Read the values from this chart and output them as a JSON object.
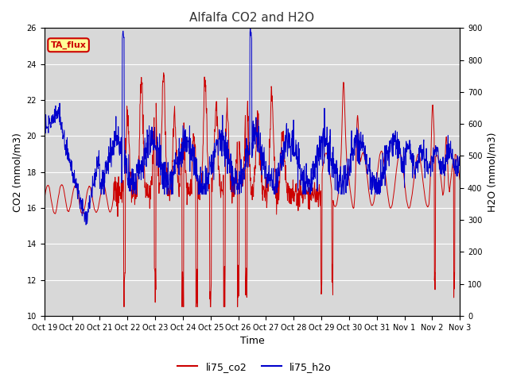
{
  "title": "Alfalfa CO2 and H2O",
  "xlabel": "Time",
  "ylabel_left": "CO2 (mmol/m3)",
  "ylabel_right": "H2O (mmol/m3)",
  "ylim_left": [
    10,
    26
  ],
  "ylim_right": [
    0,
    900
  ],
  "yticks_left": [
    10,
    12,
    14,
    16,
    18,
    20,
    22,
    24,
    26
  ],
  "yticks_right": [
    0,
    100,
    200,
    300,
    400,
    500,
    600,
    700,
    800,
    900
  ],
  "color_co2": "#cc0000",
  "color_h2o": "#0000cc",
  "legend_label_co2": "li75_co2",
  "legend_label_h2o": "li75_h2o",
  "annotation_text": "TA_flux",
  "annotation_color": "#cc0000",
  "annotation_bg": "#ffff99",
  "plot_bg": "#d8d8d8",
  "tick_labels": [
    "Oct 19",
    "Oct 20",
    "Oct 21",
    "Oct 22",
    "Oct 23",
    "Oct 24",
    "Oct 25",
    "Oct 26",
    "Oct 27",
    "Oct 28",
    "Oct 29",
    "Oct 30",
    "Oct 31",
    "Nov 1",
    "Nov 2",
    "Nov 3"
  ],
  "figsize": [
    6.4,
    4.8
  ],
  "dpi": 100
}
